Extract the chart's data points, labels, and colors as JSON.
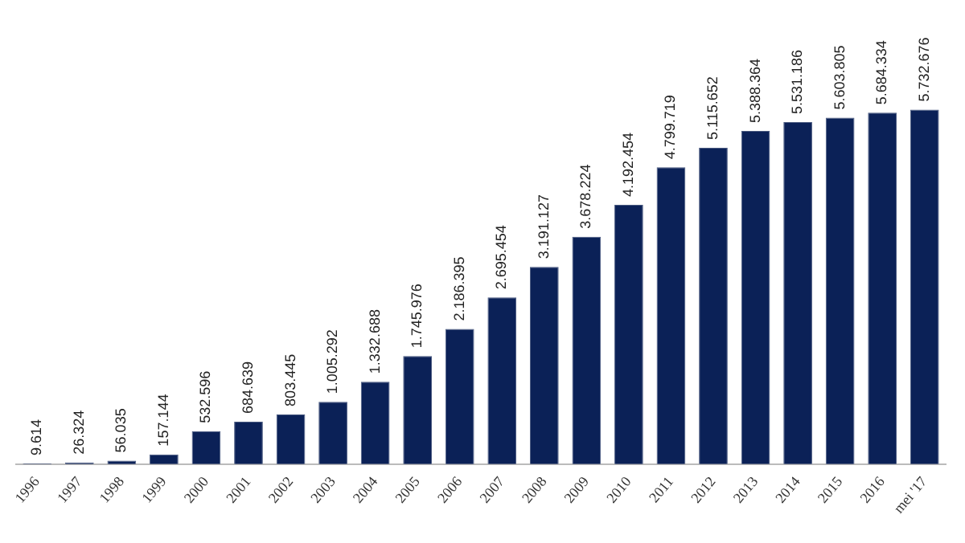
{
  "chart_data": {
    "type": "bar",
    "categories": [
      "1996",
      "1997",
      "1998",
      "1999",
      "2000",
      "2001",
      "2002",
      "2003",
      "2004",
      "2005",
      "2006",
      "2007",
      "2008",
      "2009",
      "2010",
      "2011",
      "2012",
      "2013",
      "2014",
      "2015",
      "2016",
      "mei '17"
    ],
    "values": [
      9614,
      26324,
      56035,
      157144,
      532596,
      684639,
      803445,
      1005292,
      1332688,
      1745976,
      2186395,
      2695454,
      3191127,
      3678224,
      4192454,
      4799719,
      5115652,
      5388364,
      5531186,
      5603805,
      5684334,
      5732676
    ],
    "value_labels": [
      "9.614",
      "26.324",
      "56.035",
      "157.144",
      "532.596",
      "684.639",
      "803.445",
      "1.005.292",
      "1.332.688",
      "1.745.976",
      "2.186.395",
      "2.695.454",
      "3.191.127",
      "3.678.224",
      "4.192.454",
      "4.799.719",
      "5.115.652",
      "5.388.364",
      "5.531.186",
      "5.603.805",
      "5.684.334",
      "5.732.676"
    ],
    "color": "#0b2157",
    "grid": false,
    "legend": false
  }
}
